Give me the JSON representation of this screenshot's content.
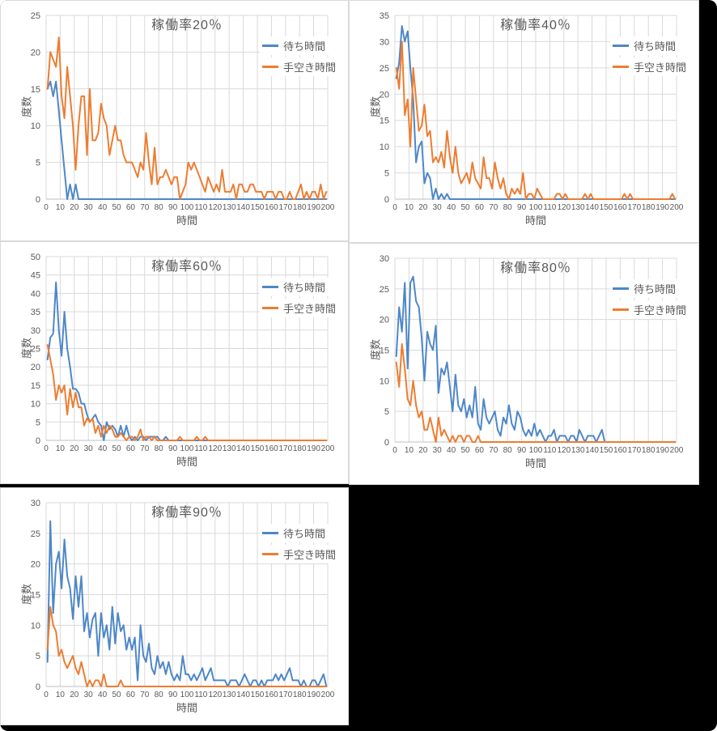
{
  "colors": {
    "canvas_background": "#000000",
    "panel_background": "#FFFFFF",
    "panel_border": "#D9D9D9",
    "gridline": "#D9D9D9",
    "axis_line": "#BFBFBF",
    "axis_text": "#595959",
    "series_wait_blue": "#4E87C8",
    "series_idle_orange": "#ED7D31"
  },
  "chart_data": [
    {
      "type": "line",
      "title": "稼働率20％",
      "xlabel": "時間",
      "ylabel": "度数",
      "xlim": [
        0,
        200
      ],
      "ylim": [
        0,
        25
      ],
      "x_tick_step": 10,
      "y_tick_step": 5,
      "grid": true,
      "legend_position": "top-right",
      "x_start": 1,
      "x_step": 2,
      "series": [
        {
          "name": "待ち時間",
          "color": "#4E87C8",
          "values": [
            15,
            16,
            14,
            16,
            12,
            8,
            4,
            0,
            2,
            0,
            2,
            0,
            0,
            0,
            0,
            0,
            0,
            0,
            0,
            0,
            0,
            0,
            0,
            0,
            0,
            0,
            0,
            0,
            0,
            0,
            0,
            0,
            0,
            0,
            0,
            0,
            0,
            0,
            0,
            0,
            0,
            0,
            0,
            0,
            0,
            0,
            0,
            0,
            0,
            0,
            0,
            0,
            0,
            0,
            0,
            0,
            0,
            0,
            0,
            0,
            0,
            0,
            0,
            0,
            0,
            0,
            0,
            0,
            0,
            0,
            0,
            0,
            0,
            0,
            0,
            0,
            0,
            0,
            0,
            0,
            0,
            0,
            0,
            0,
            0,
            0,
            0,
            0,
            0,
            0,
            0,
            0,
            0,
            0,
            0,
            0,
            0,
            0,
            0,
            0
          ]
        },
        {
          "name": "手空き時間",
          "color": "#ED7D31",
          "values": [
            15,
            20,
            19,
            18,
            22,
            14,
            11,
            18,
            14,
            10,
            4,
            10,
            14,
            14,
            6,
            15,
            8,
            8,
            9,
            13,
            11,
            10,
            6,
            8,
            10,
            8,
            8,
            6,
            5,
            5,
            5,
            4,
            3,
            5,
            4,
            9,
            5,
            2,
            7,
            2,
            3,
            3,
            4,
            3,
            2,
            3,
            3,
            0,
            1,
            2,
            5,
            4,
            5,
            4,
            3,
            2,
            1,
            3,
            2,
            1,
            2,
            1,
            4,
            1,
            1,
            1,
            2,
            0,
            2,
            2,
            1,
            1,
            2,
            2,
            1,
            1,
            1,
            0,
            1,
            1,
            1,
            0,
            1,
            1,
            0,
            0,
            1,
            0,
            0,
            1,
            2,
            0,
            1,
            0,
            1,
            1,
            0,
            2,
            0,
            1
          ]
        }
      ]
    },
    {
      "type": "line",
      "title": "稼働率40％",
      "xlabel": "時間",
      "ylabel": "度数",
      "xlim": [
        0,
        200
      ],
      "ylim": [
        0,
        35
      ],
      "x_tick_step": 10,
      "y_tick_step": 5,
      "grid": true,
      "legend_position": "top-right",
      "x_start": 1,
      "x_step": 2,
      "series": [
        {
          "name": "待ち時間",
          "color": "#4E87C8",
          "values": [
            23,
            26,
            33,
            30,
            32,
            25,
            19,
            7,
            10,
            11,
            3,
            5,
            4,
            0,
            2,
            0,
            1,
            0,
            1,
            0,
            0,
            0,
            0,
            0,
            0,
            0,
            0,
            0,
            0,
            0,
            0,
            0,
            0,
            0,
            0,
            0,
            0,
            0,
            0,
            0,
            0,
            0,
            0,
            0,
            0,
            0,
            0,
            0,
            0,
            0,
            0,
            0,
            0,
            0,
            0,
            0,
            0,
            0,
            0,
            0,
            0,
            0,
            0,
            0,
            0,
            0,
            0,
            0,
            0,
            0,
            0,
            0,
            0,
            0,
            0,
            0,
            0,
            0,
            0,
            0,
            0,
            0,
            0,
            0,
            0,
            0,
            0,
            0,
            0,
            0,
            0,
            0,
            0,
            0,
            0,
            0,
            0,
            0,
            0,
            0
          ]
        },
        {
          "name": "手空き時間",
          "color": "#ED7D31",
          "values": [
            25,
            21,
            30,
            16,
            19,
            10,
            25,
            19,
            13,
            14,
            18,
            12,
            13,
            7,
            8,
            7,
            9,
            6,
            13,
            8,
            5,
            10,
            5,
            3,
            4,
            5,
            3,
            7,
            4,
            3,
            2,
            8,
            4,
            4,
            2,
            7,
            4,
            2,
            4,
            1,
            0,
            2,
            1,
            2,
            1,
            5,
            0,
            1,
            1,
            0,
            2,
            1,
            0,
            0,
            0,
            0,
            0,
            1,
            1,
            0,
            1,
            0,
            0,
            0,
            0,
            0,
            0,
            1,
            0,
            1,
            0,
            0,
            0,
            0,
            0,
            0,
            0,
            0,
            0,
            0,
            0,
            1,
            0,
            1,
            0,
            0,
            0,
            0,
            0,
            0,
            0,
            0,
            0,
            0,
            0,
            0,
            0,
            0,
            1,
            0
          ]
        }
      ]
    },
    {
      "type": "line",
      "title": "稼働率60％",
      "xlabel": "時間",
      "ylabel": "度数",
      "xlim": [
        0,
        200
      ],
      "ylim": [
        0,
        50
      ],
      "x_tick_step": 10,
      "y_tick_step": 5,
      "grid": true,
      "legend_position": "top-right",
      "x_start": 1,
      "x_step": 2,
      "series": [
        {
          "name": "待ち時間",
          "color": "#4E87C8",
          "values": [
            22,
            28,
            29,
            43,
            30,
            23,
            35,
            25,
            20,
            14,
            14,
            13,
            10,
            10,
            7,
            5,
            6,
            7,
            5,
            4,
            0,
            5,
            3,
            4,
            3,
            1,
            4,
            1,
            4,
            1,
            0,
            1,
            0,
            1,
            1,
            0,
            1,
            1,
            1,
            1,
            0,
            0,
            1,
            0,
            0,
            0,
            0,
            0,
            0,
            0,
            0,
            0,
            0,
            0,
            0,
            0,
            0,
            0,
            0,
            0,
            0,
            0,
            0,
            0,
            0,
            0,
            0,
            0,
            0,
            0,
            0,
            0,
            0,
            0,
            0,
            0,
            0,
            0,
            0,
            0,
            0,
            0,
            0,
            0,
            0,
            0,
            0,
            0,
            0,
            0,
            0,
            0,
            0,
            0,
            0,
            0,
            0,
            0,
            0,
            0
          ]
        },
        {
          "name": "手空き時間",
          "color": "#ED7D31",
          "values": [
            26,
            22,
            18,
            11,
            15,
            13,
            15,
            7,
            14,
            9,
            13,
            9,
            9,
            4,
            6,
            5,
            6,
            2,
            4,
            1,
            4,
            2,
            4,
            3,
            1,
            1,
            2,
            1,
            0,
            1,
            1,
            0,
            1,
            3,
            0,
            1,
            1,
            0,
            1,
            0,
            0,
            0,
            0,
            0,
            0,
            0,
            0,
            1,
            0,
            0,
            0,
            0,
            0,
            1,
            0,
            0,
            1,
            0,
            0,
            0,
            0,
            0,
            0,
            0,
            0,
            0,
            0,
            0,
            0,
            0,
            0,
            0,
            0,
            0,
            0,
            0,
            0,
            0,
            0,
            0,
            0,
            0,
            0,
            0,
            0,
            0,
            0,
            0,
            0,
            0,
            0,
            0,
            0,
            0,
            0,
            0,
            0,
            0,
            0,
            0
          ]
        }
      ]
    },
    {
      "type": "line",
      "title": "稼働率80％",
      "xlabel": "時間",
      "ylabel": "度数",
      "xlim": [
        0,
        200
      ],
      "ylim": [
        0,
        30
      ],
      "x_tick_step": 10,
      "y_tick_step": 5,
      "grid": true,
      "legend_position": "top-right",
      "x_start": 1,
      "x_step": 2,
      "series": [
        {
          "name": "待ち時間",
          "color": "#4E87C8",
          "values": [
            14,
            22,
            18,
            26,
            12,
            26,
            27,
            23,
            22,
            17,
            10,
            18,
            16,
            15,
            19,
            8,
            12,
            11,
            13,
            9,
            5,
            11,
            6,
            5,
            7,
            4,
            6,
            4,
            9,
            3,
            2,
            7,
            4,
            3,
            4,
            5,
            2,
            1,
            4,
            3,
            6,
            3,
            2,
            5,
            4,
            2,
            1,
            2,
            1,
            3,
            1,
            2,
            1,
            0,
            1,
            1,
            2,
            0,
            1,
            1,
            1,
            0,
            1,
            1,
            0,
            2,
            1,
            0,
            1,
            1,
            1,
            0,
            1,
            2,
            0,
            0,
            0,
            0,
            0,
            0,
            0,
            0,
            0,
            0,
            0,
            0,
            0,
            0,
            0,
            0,
            0,
            0,
            0,
            0,
            0,
            0,
            0,
            0,
            0,
            0
          ]
        },
        {
          "name": "手空き時間",
          "color": "#ED7D31",
          "values": [
            13,
            9,
            16,
            12,
            7,
            6,
            10,
            6,
            4,
            5,
            2,
            2,
            4,
            2,
            0,
            4,
            1,
            2,
            1,
            0,
            1,
            0,
            1,
            1,
            0,
            1,
            1,
            0,
            0,
            1,
            0,
            0,
            0,
            0,
            0,
            0,
            0,
            0,
            0,
            0,
            0,
            0,
            0,
            0,
            0,
            0,
            0,
            0,
            0,
            0,
            0,
            0,
            0,
            0,
            0,
            0,
            0,
            0,
            0,
            0,
            0,
            0,
            0,
            0,
            0,
            0,
            0,
            0,
            0,
            0,
            0,
            0,
            0,
            0,
            0,
            0,
            0,
            0,
            0,
            0,
            0,
            0,
            0,
            0,
            0,
            0,
            0,
            0,
            0,
            0,
            0,
            0,
            0,
            0,
            0,
            0,
            0,
            0,
            0,
            0
          ]
        }
      ]
    },
    {
      "type": "line",
      "title": "稼働率90％",
      "xlabel": "時間",
      "ylabel": "度数",
      "xlim": [
        0,
        200
      ],
      "ylim": [
        0,
        30
      ],
      "x_tick_step": 10,
      "y_tick_step": 5,
      "grid": true,
      "legend_position": "top-right",
      "x_start": 1,
      "x_step": 2,
      "series": [
        {
          "name": "待ち時間",
          "color": "#4E87C8",
          "values": [
            4,
            27,
            12,
            20,
            22,
            16,
            24,
            18,
            16,
            11,
            18,
            13,
            18,
            9,
            12,
            8,
            11,
            12,
            5,
            12,
            8,
            10,
            6,
            13,
            7,
            12,
            9,
            10,
            6,
            8,
            6,
            8,
            1,
            10,
            5,
            4,
            7,
            3,
            2,
            5,
            3,
            4,
            2,
            4,
            2,
            1,
            2,
            1,
            5,
            2,
            2,
            1,
            2,
            1,
            2,
            3,
            1,
            2,
            3,
            1,
            1,
            1,
            1,
            1,
            0,
            1,
            1,
            1,
            0,
            1,
            2,
            1,
            0,
            1,
            1,
            0,
            1,
            0,
            1,
            1,
            1,
            2,
            1,
            2,
            1,
            2,
            3,
            1,
            1,
            1,
            0,
            1,
            0,
            0,
            1,
            1,
            0,
            1,
            2,
            0
          ]
        },
        {
          "name": "手空き時間",
          "color": "#ED7D31",
          "values": [
            6,
            13,
            10,
            9,
            5,
            6,
            4,
            3,
            4,
            5,
            3,
            2,
            4,
            2,
            0,
            1,
            0,
            1,
            1,
            0,
            2,
            0,
            0,
            0,
            0,
            0,
            1,
            0,
            0,
            0,
            0,
            0,
            0,
            0,
            0,
            0,
            0,
            0,
            0,
            0,
            0,
            0,
            0,
            0,
            0,
            0,
            0,
            0,
            0,
            0,
            0,
            0,
            0,
            0,
            0,
            0,
            0,
            0,
            0,
            0,
            0,
            0,
            0,
            0,
            0,
            0,
            0,
            0,
            0,
            0,
            0,
            0,
            0,
            0,
            0,
            0,
            0,
            0,
            0,
            0,
            0,
            0,
            0,
            0,
            0,
            0,
            0,
            0,
            0,
            0,
            0,
            0,
            0,
            0,
            0,
            0,
            0,
            0,
            0,
            0
          ]
        }
      ]
    }
  ]
}
